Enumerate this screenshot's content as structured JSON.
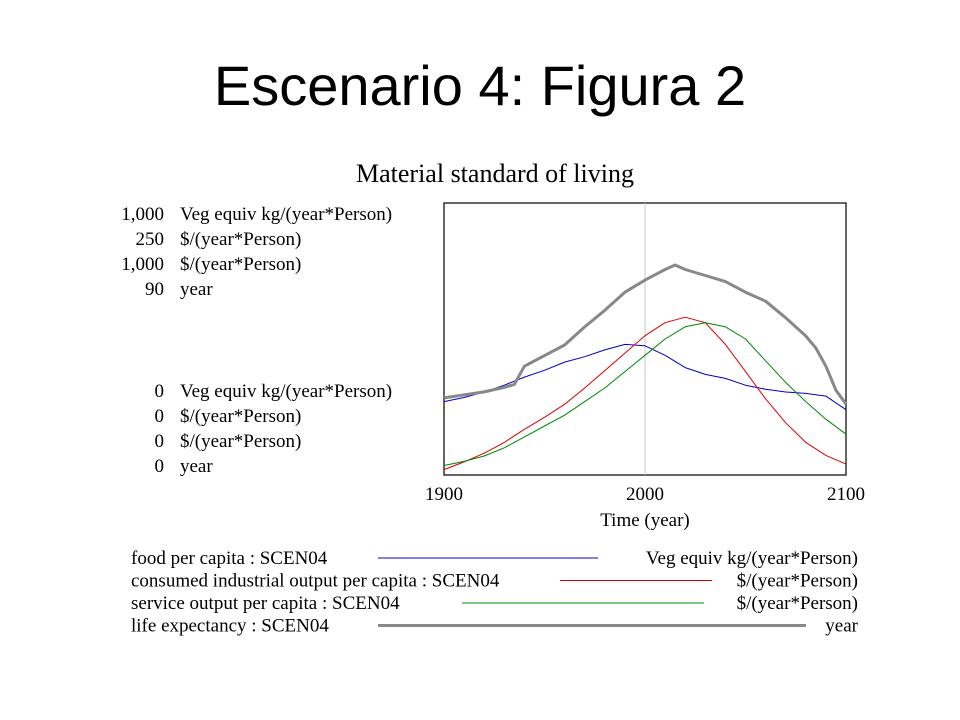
{
  "slide_title": "Escenario 4: Figura 2",
  "chart_data": {
    "type": "line",
    "title": "Material standard of living",
    "xlabel": "Time (year)",
    "xlim": [
      1900,
      2100
    ],
    "x_ticks": [
      "1900",
      "2000",
      "2100"
    ],
    "reference_line_x": 2000,
    "y_axes": [
      {
        "max_label": "1,000",
        "min_label": "0",
        "unit": "Veg equiv kg/(year*Person)",
        "ylim": [
          0,
          1000
        ]
      },
      {
        "max_label": "250",
        "min_label": "0",
        "unit": "$/(year*Person)",
        "ylim": [
          0,
          250
        ]
      },
      {
        "max_label": "1,000",
        "min_label": "0",
        "unit": "$/(year*Person)",
        "ylim": [
          0,
          1000
        ]
      },
      {
        "max_label": "90",
        "min_label": "0",
        "unit": "year",
        "ylim": [
          0,
          90
        ]
      }
    ],
    "series": [
      {
        "name": "food per capita : SCEN04",
        "unit": "Veg equiv kg/(year*Person)",
        "color": "#0000cc",
        "axis": 0,
        "x": [
          1900,
          1910,
          1920,
          1930,
          1940,
          1950,
          1960,
          1970,
          1980,
          1990,
          2000,
          2010,
          2020,
          2030,
          2040,
          2050,
          2060,
          2070,
          2080,
          2090,
          2095,
          2100
        ],
        "values": [
          270,
          285,
          305,
          330,
          360,
          385,
          415,
          435,
          460,
          480,
          475,
          440,
          395,
          370,
          355,
          330,
          315,
          305,
          300,
          290,
          265,
          240
        ]
      },
      {
        "name": "consumed industrial output per capita : SCEN04",
        "unit": "$/(year*Person)",
        "color": "#dd0000",
        "axis": 1,
        "x": [
          1900,
          1910,
          1920,
          1930,
          1940,
          1950,
          1960,
          1970,
          1980,
          1990,
          2000,
          2010,
          2020,
          2030,
          2040,
          2050,
          2060,
          2070,
          2080,
          2090,
          2100
        ],
        "values": [
          5,
          12,
          20,
          30,
          42,
          53,
          65,
          80,
          96,
          112,
          128,
          140,
          145,
          140,
          120,
          95,
          70,
          48,
          30,
          18,
          10
        ]
      },
      {
        "name": "service output per capita : SCEN04",
        "unit": "$/(year*Person)",
        "color": "#008800",
        "axis": 2,
        "x": [
          1900,
          1910,
          1920,
          1930,
          1940,
          1950,
          1960,
          1970,
          1980,
          1990,
          2000,
          2010,
          2020,
          2030,
          2040,
          2050,
          2060,
          2070,
          2080,
          2090,
          2100
        ],
        "values": [
          35,
          50,
          70,
          100,
          140,
          180,
          220,
          270,
          320,
          380,
          440,
          500,
          545,
          560,
          545,
          500,
          420,
          340,
          270,
          205,
          150
        ]
      },
      {
        "name": "life expectancy : SCEN04",
        "unit": "year",
        "color": "#888888",
        "axis": 3,
        "x": [
          1900,
          1910,
          1920,
          1930,
          1935,
          1940,
          1950,
          1960,
          1970,
          1980,
          1990,
          2000,
          2010,
          2015,
          2020,
          2030,
          2040,
          2050,
          2060,
          2070,
          2080,
          2085,
          2090,
          2095,
          2100
        ],
        "values": [
          25.5,
          26.5,
          27.5,
          29,
          30,
          36,
          39.5,
          43,
          49,
          54.5,
          60.5,
          64.5,
          68,
          69.5,
          68,
          66,
          64,
          60.5,
          57.5,
          52,
          46,
          42,
          36,
          28,
          23.5
        ]
      }
    ],
    "legend_placement": "bottom",
    "grid": false
  }
}
